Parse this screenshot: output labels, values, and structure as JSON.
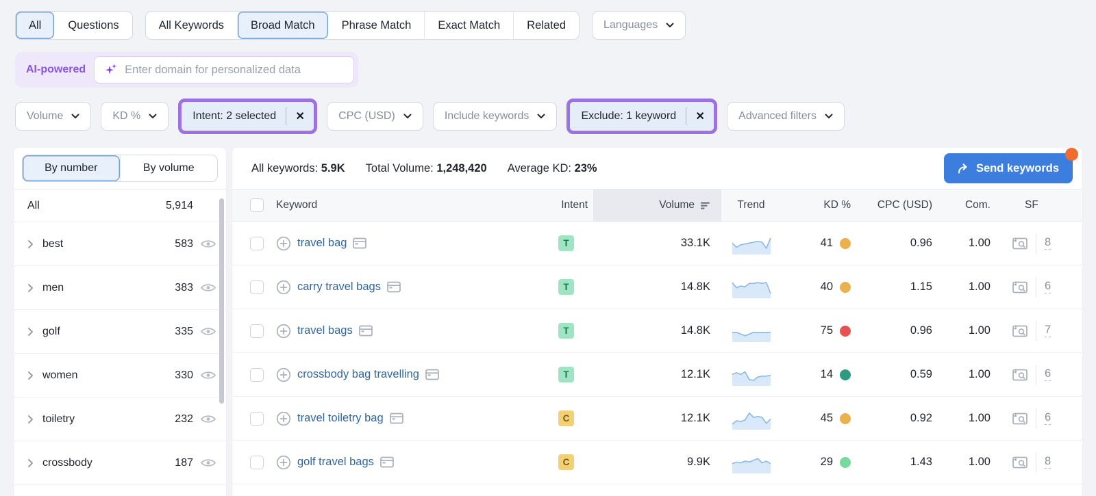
{
  "top_tabs": {
    "groups": [
      {
        "items": [
          {
            "label": "All",
            "selected": true
          },
          {
            "label": "Questions",
            "selected": false
          }
        ]
      },
      {
        "items": [
          {
            "label": "All Keywords",
            "selected": false
          },
          {
            "label": "Broad Match",
            "selected": true
          },
          {
            "label": "Phrase Match",
            "selected": false
          },
          {
            "label": "Exact Match",
            "selected": false
          },
          {
            "label": "Related",
            "selected": false
          }
        ]
      }
    ],
    "languages_label": "Languages"
  },
  "ai_bar": {
    "badge": "AI-powered",
    "placeholder": "Enter domain for personalized data"
  },
  "filters": [
    {
      "label": "Volume",
      "kind": "dropdown",
      "highlight": false
    },
    {
      "label": "KD %",
      "kind": "dropdown",
      "highlight": false
    },
    {
      "label": "Intent: 2 selected",
      "kind": "active",
      "highlight": true
    },
    {
      "label": "CPC (USD)",
      "kind": "dropdown",
      "highlight": false
    },
    {
      "label": "Include keywords",
      "kind": "dropdown",
      "highlight": false
    },
    {
      "label": "Exclude: 1 keyword",
      "kind": "active",
      "highlight": true
    },
    {
      "label": "Advanced filters",
      "kind": "dropdown",
      "highlight": false
    }
  ],
  "sidebar": {
    "toggle": [
      {
        "label": "By number",
        "selected": true
      },
      {
        "label": "By volume",
        "selected": false
      }
    ],
    "all_row": {
      "label": "All",
      "count": "5,914"
    },
    "items": [
      {
        "label": "best",
        "count": "583"
      },
      {
        "label": "men",
        "count": "383"
      },
      {
        "label": "golf",
        "count": "335"
      },
      {
        "label": "women",
        "count": "330"
      },
      {
        "label": "toiletry",
        "count": "232"
      },
      {
        "label": "crossbody",
        "count": "187"
      }
    ]
  },
  "summary": {
    "all_keywords_label": "All keywords:",
    "all_keywords_value": "5.9K",
    "total_volume_label": "Total Volume:",
    "total_volume_value": "1,248,420",
    "average_kd_label": "Average KD:",
    "average_kd_value": "23%",
    "send_button_label": "Send keywords"
  },
  "table": {
    "columns": [
      "Keyword",
      "Intent",
      "Volume",
      "Trend",
      "KD %",
      "CPC (USD)",
      "Com.",
      "SF"
    ],
    "sorted_column": "Volume",
    "rows": [
      {
        "keyword": "travel bag",
        "intent": "T",
        "volume": "33.1K",
        "kd": "41",
        "kd_color": "#eab14e",
        "cpc": "0.96",
        "com": "1.00",
        "sf": "8",
        "trend": [
          0.55,
          0.3,
          0.45,
          0.5,
          0.55,
          0.6,
          0.65,
          0.6,
          0.25,
          0.85
        ]
      },
      {
        "keyword": "carry travel bags",
        "intent": "T",
        "volume": "14.8K",
        "kd": "40",
        "kd_color": "#eab14e",
        "cpc": "1.15",
        "com": "1.00",
        "sf": "6",
        "trend": [
          0.8,
          0.5,
          0.6,
          0.55,
          0.75,
          0.75,
          0.8,
          0.75,
          0.8,
          0.15
        ]
      },
      {
        "keyword": "travel bags",
        "intent": "T",
        "volume": "14.8K",
        "kd": "75",
        "kd_color": "#e45252",
        "cpc": "0.96",
        "com": "1.00",
        "sf": "7",
        "trend": [
          0.45,
          0.45,
          0.35,
          0.25,
          0.35,
          0.45,
          0.45,
          0.45,
          0.45,
          0.45
        ]
      },
      {
        "keyword": "crossbody bag travelling",
        "intent": "T",
        "volume": "12.1K",
        "kd": "14",
        "kd_color": "#2e9b7f",
        "cpc": "0.59",
        "com": "1.00",
        "sf": "6",
        "trend": [
          0.55,
          0.65,
          0.55,
          0.7,
          0.25,
          0.2,
          0.4,
          0.45,
          0.45,
          0.5
        ]
      },
      {
        "keyword": "travel toiletry bag",
        "intent": "C",
        "volume": "12.1K",
        "kd": "45",
        "kd_color": "#eab14e",
        "cpc": "0.92",
        "com": "1.00",
        "sf": "6",
        "trend": [
          0.2,
          0.4,
          0.35,
          0.45,
          0.85,
          0.6,
          0.65,
          0.6,
          0.25,
          0.5
        ]
      },
      {
        "keyword": "golf travel bags",
        "intent": "C",
        "volume": "9.9K",
        "kd": "29",
        "kd_color": "#76d99e",
        "cpc": "1.43",
        "com": "1.00",
        "sf": "8",
        "trend": [
          0.45,
          0.55,
          0.5,
          0.6,
          0.55,
          0.65,
          0.75,
          0.5,
          0.6,
          0.45
        ]
      }
    ]
  },
  "colors": {
    "accent_blue": "#3b7ede",
    "selected_tab_bg": "#e7f0fb",
    "selected_tab_border": "#74a4d8",
    "highlight_purple": "#9b72e0",
    "ai_purple": "#8a55e0",
    "link_blue": "#31679f",
    "notification_orange": "#ef6c30",
    "intent_t_bg": "#9fe5c3",
    "intent_t_text": "#127a58",
    "intent_c_bg": "#f2d077",
    "intent_c_text": "#7c5a0e",
    "sparkline_fill": "#d9e9f9",
    "sparkline_line": "#8cb8e8"
  }
}
